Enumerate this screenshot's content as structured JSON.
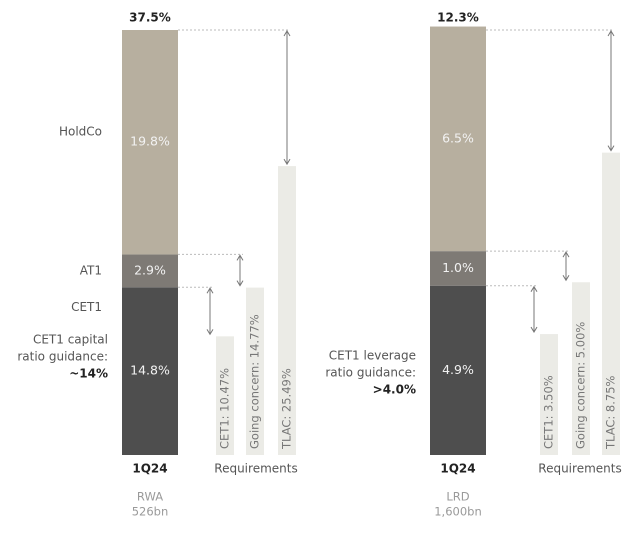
{
  "chart_data": [
    {
      "type": "bar",
      "stacked": true,
      "categories": [
        "1Q24"
      ],
      "ylim": [
        0,
        37.5
      ],
      "total": {
        "value": 37.5,
        "label": "37.5%"
      },
      "series": [
        {
          "name": "CET1",
          "color": "#4e4e4e",
          "values": [
            14.8
          ],
          "value_labels": [
            "14.8%"
          ]
        },
        {
          "name": "AT1",
          "color": "#7e7a75",
          "values": [
            2.9
          ],
          "value_labels": [
            "2.9%"
          ]
        },
        {
          "name": "HoldCo",
          "color": "#b7af9f",
          "values": [
            19.8
          ],
          "value_labels": [
            "19.8%"
          ]
        }
      ],
      "requirements_label": "Requirements",
      "requirements": [
        {
          "label": "CET1: 10.47%",
          "value": 10.47
        },
        {
          "label": "Going concern: 14.77%",
          "value": 14.77
        },
        {
          "label": "TLAC: 25.49%",
          "value": 25.49
        }
      ],
      "requirements_color": "#ebebe6",
      "annotation": [
        "CET1 capital",
        "ratio guidance:"
      ],
      "annotation_value": "~14%",
      "footnote": [
        "RWA",
        "526bn"
      ]
    },
    {
      "type": "bar",
      "stacked": true,
      "categories": [
        "1Q24"
      ],
      "ylim": [
        0,
        12.3
      ],
      "total": {
        "value": 12.3,
        "label": "12.3%"
      },
      "series": [
        {
          "color": "#4e4e4e",
          "values": [
            4.9
          ],
          "value_labels": [
            "4.9%"
          ]
        },
        {
          "color": "#7e7a75",
          "values": [
            1.0
          ],
          "value_labels": [
            "1.0%"
          ]
        },
        {
          "color": "#b7af9f",
          "values": [
            6.5
          ],
          "value_labels": [
            "6.5%"
          ]
        }
      ],
      "requirements_label": "Requirements",
      "requirements": [
        {
          "label": "CET1: 3.50%",
          "value": 3.5
        },
        {
          "label": "Going concern: 5.00%",
          "value": 5.0
        },
        {
          "label": "TLAC: 8.75%",
          "value": 8.75
        }
      ],
      "requirements_color": "#ebebe6",
      "annotation": [
        "CET1 leverage",
        "ratio guidance:"
      ],
      "annotation_value": ">4.0%",
      "footnote": [
        "LRD",
        "1,600bn"
      ]
    }
  ]
}
